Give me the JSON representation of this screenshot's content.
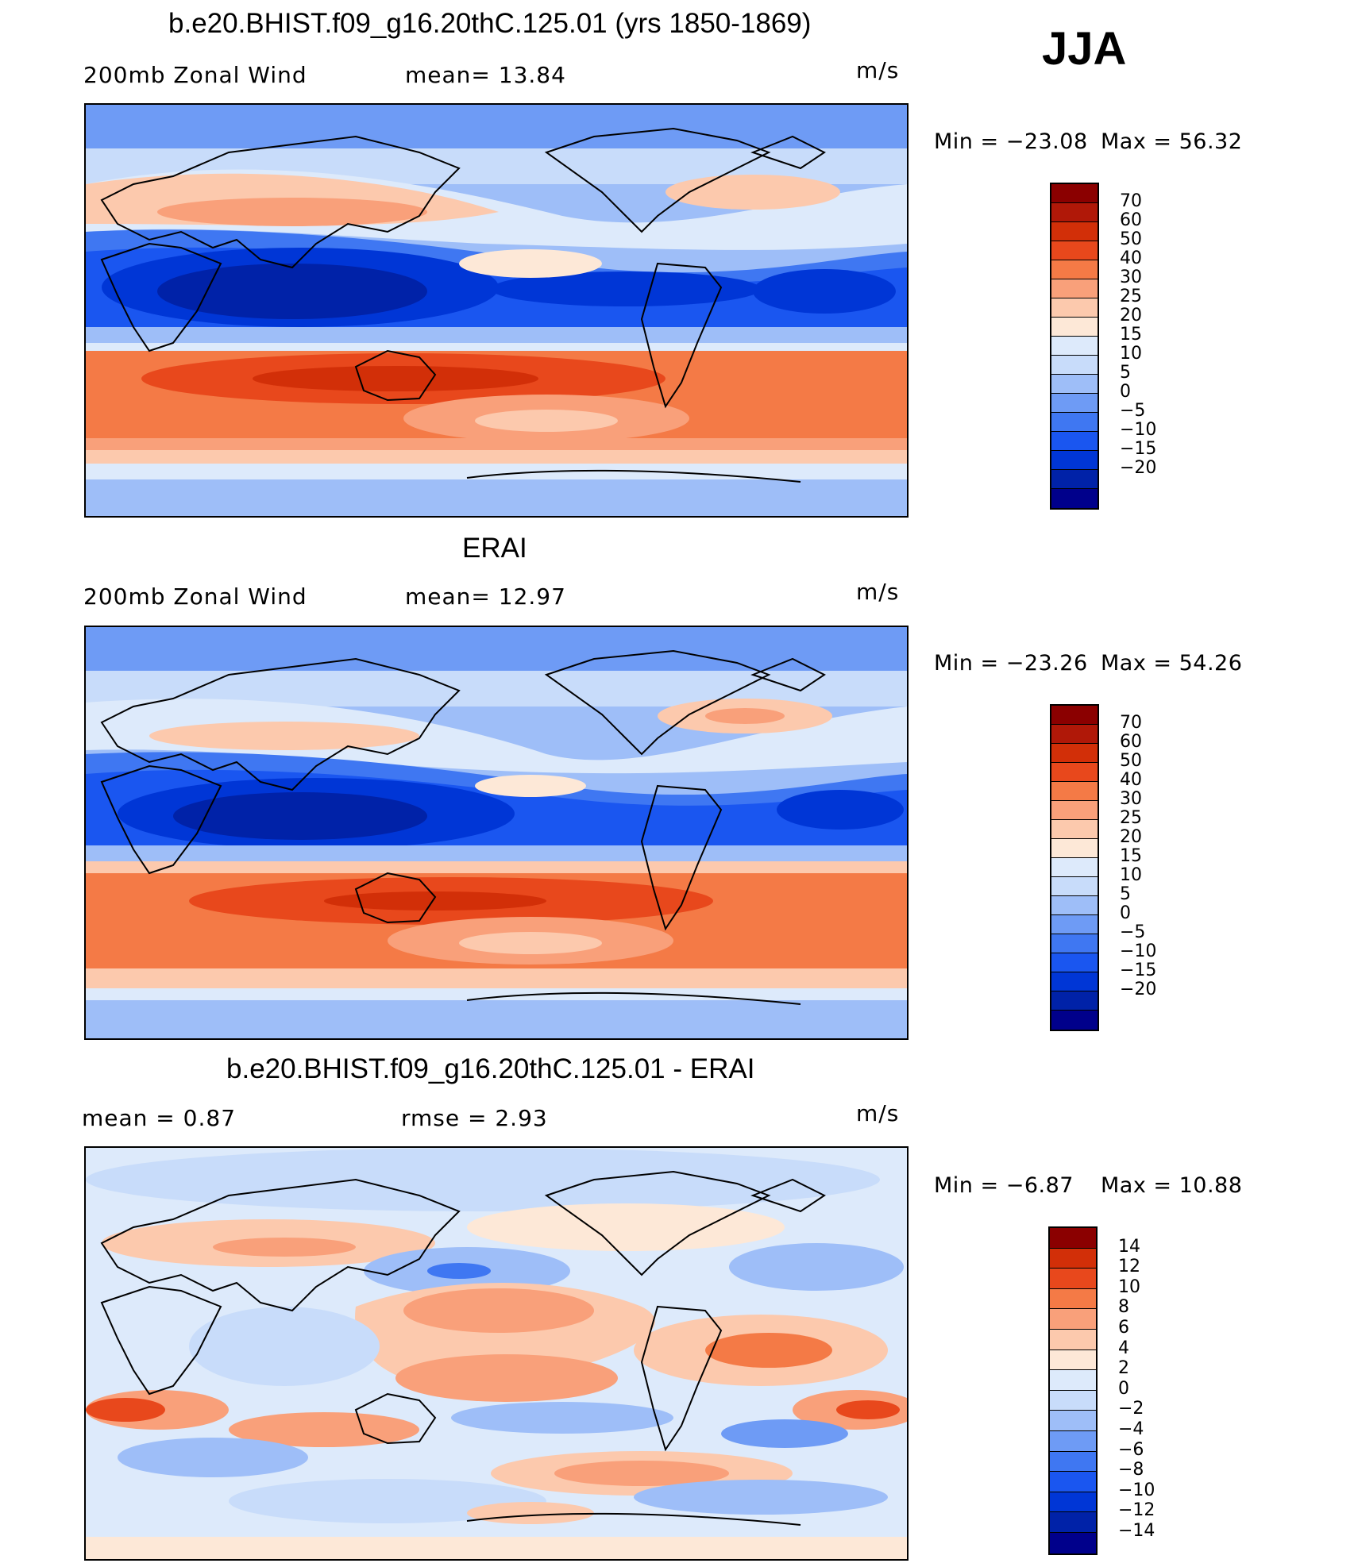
{
  "season": "JJA",
  "units": "m/s",
  "colors": {
    "wind_scale": [
      "#00008b",
      "#0022a8",
      "#0036d6",
      "#1a56f0",
      "#3f77f2",
      "#6e9bf5",
      "#9ebef8",
      "#c8dcfa",
      "#ddeafb",
      "#fde8d7",
      "#fcc9ad",
      "#f9a07a",
      "#f47a46",
      "#e8481c",
      "#d22f08",
      "#b01808",
      "#8b0000"
    ],
    "diff_scale": [
      "#00008b",
      "#0022a8",
      "#0036d6",
      "#1a56f0",
      "#3f77f2",
      "#6e9bf5",
      "#9ebef8",
      "#c8dcfa",
      "#ddeafb",
      "#fde8d7",
      "#fcc9ad",
      "#f9a07a",
      "#f47a46",
      "#e8481c",
      "#d22f08",
      "#8b0000"
    ]
  },
  "panels": [
    {
      "title": "b.e20.BHIST.f09_g16.20thC.125.01 (yrs 1850-1869)",
      "left_label": "200mb  Zonal  Wind",
      "center_label": "mean=   13.84",
      "units": "m/s",
      "min_label": "Min  =  −23.08",
      "max_label": "Max  =   56.32",
      "colorbar_ticks": [
        "70",
        "60",
        "50",
        "40",
        "30",
        "25",
        "20",
        "15",
        "10",
        "5",
        "0",
        "−5",
        "−10",
        "−15",
        "−20"
      ]
    },
    {
      "title": "ERAI",
      "left_label": "200mb  Zonal  Wind",
      "center_label": "mean=   12.97",
      "units": "m/s",
      "min_label": "Min  =  −23.26",
      "max_label": "Max  =   54.26",
      "colorbar_ticks": [
        "70",
        "60",
        "50",
        "40",
        "30",
        "25",
        "20",
        "15",
        "10",
        "5",
        "0",
        "−5",
        "−10",
        "−15",
        "−20"
      ]
    },
    {
      "title": "b.e20.BHIST.f09_g16.20thC.125.01 - ERAI",
      "left_label": "mean  =     0.87",
      "center_label": "rmse  =     2.93",
      "units": "m/s",
      "min_label": "Min  =    −6.87",
      "max_label": "Max  =   10.88",
      "colorbar_ticks": [
        "14",
        "12",
        "10",
        "8",
        "6",
        "4",
        "2",
        "0",
        "−2",
        "−4",
        "−6",
        "−8",
        "−10",
        "−12",
        "−14"
      ]
    }
  ]
}
